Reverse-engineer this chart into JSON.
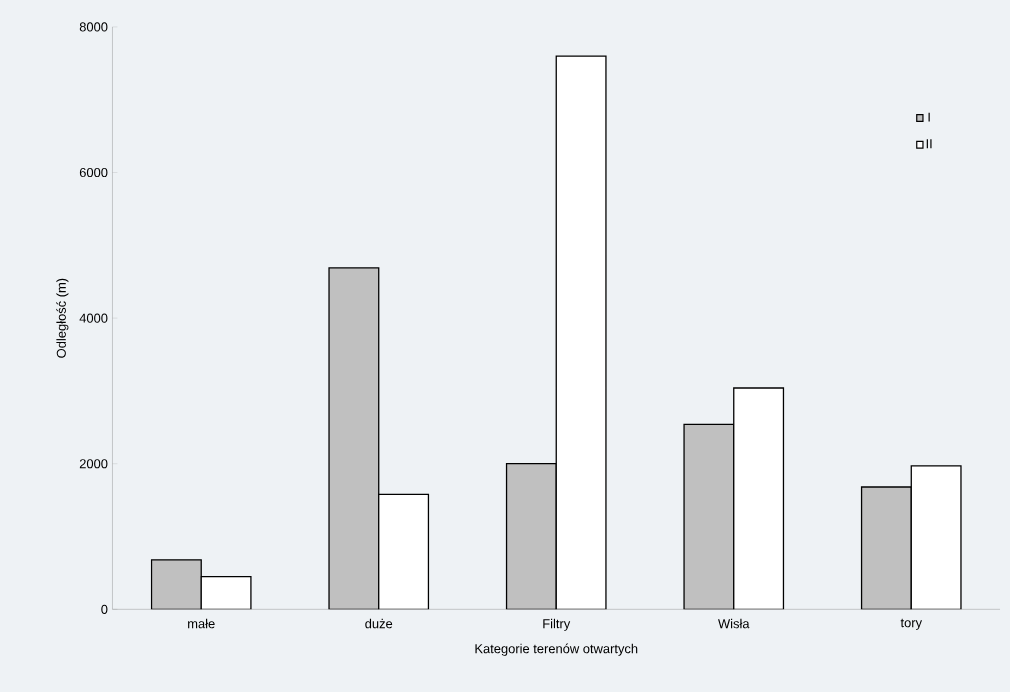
{
  "chart_data": {
    "type": "bar",
    "xlabel": "Kategorie terenów otwartych",
    "ylabel": "Odległość (m)",
    "categories": [
      "małe",
      "duże",
      "Filtry",
      "Wisła",
      "tory"
    ],
    "series": [
      {
        "name": "I",
        "color": "#c0c0c0",
        "values": [
          680,
          4690,
          2000,
          2540,
          1680
        ]
      },
      {
        "name": "II",
        "color": "#ffffff",
        "values": [
          450,
          1580,
          7600,
          3040,
          1970
        ]
      }
    ],
    "ylim": [
      0,
      8000
    ],
    "yticks": [
      0,
      2000,
      4000,
      6000,
      8000
    ],
    "grid": false,
    "legend": "top right"
  }
}
